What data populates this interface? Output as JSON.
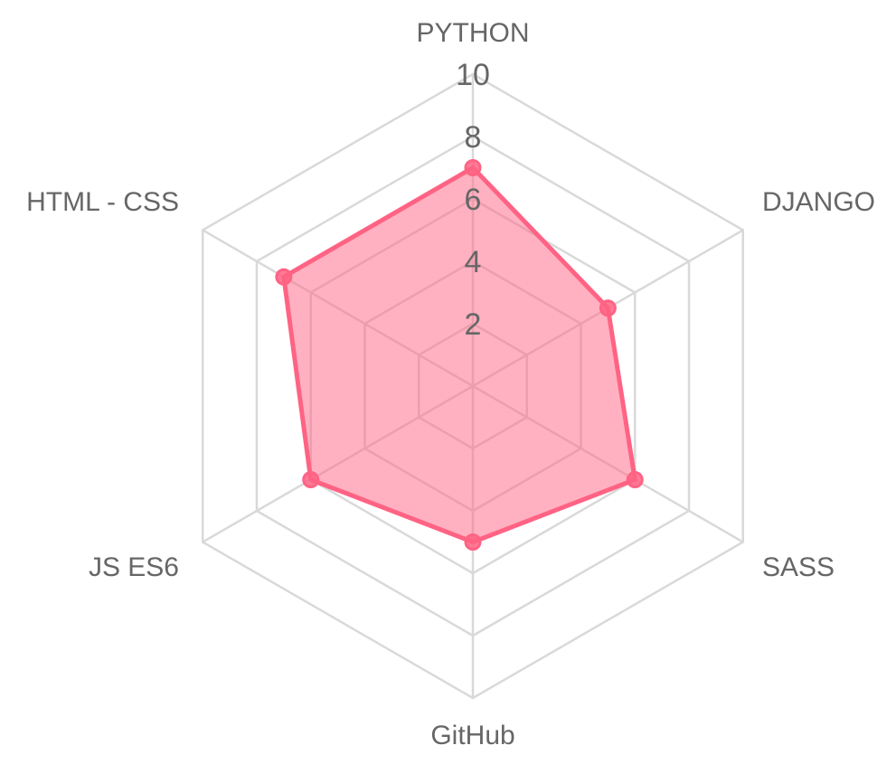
{
  "chart_data": {
    "type": "radar",
    "labels": [
      "PYTHON",
      "DJANGO",
      "SASS",
      "GitHub",
      "JS ES6",
      "HTML - CSS"
    ],
    "series": [
      {
        "values": [
          7,
          5,
          6,
          5,
          6,
          7
        ]
      }
    ],
    "rmin": 0,
    "rmax": 10,
    "ticks": [
      2,
      4,
      6,
      8,
      10
    ],
    "tick_labels": [
      "2",
      "4",
      "6",
      "8",
      "10"
    ],
    "grid": true,
    "colors": {
      "fill": "#ff6384",
      "stroke": "#ff6384",
      "grid": "#d9d9d9",
      "text": "#666666"
    }
  }
}
